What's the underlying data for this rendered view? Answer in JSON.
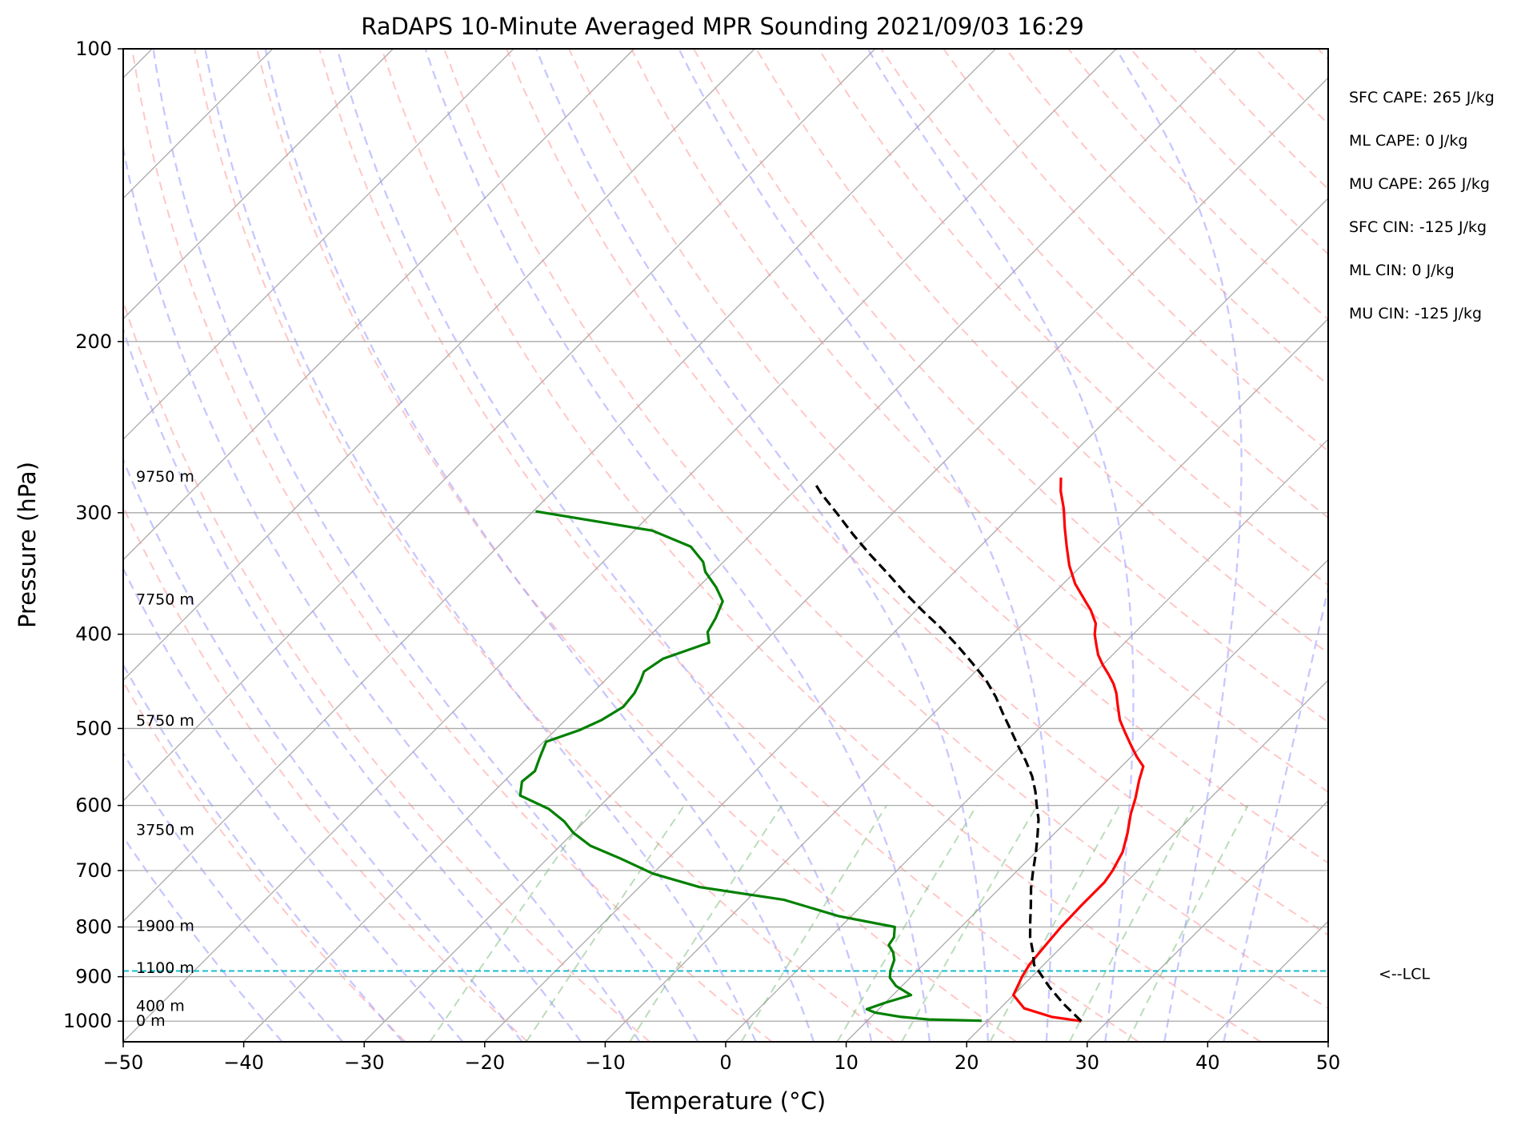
{
  "chart_data": {
    "type": "line",
    "title": "RaDAPS 10-Minute Averaged MPR Sounding 2021/09/03 16:29",
    "xlabel": "Temperature (°C)",
    "ylabel": "Pressure (hPa)",
    "xlim": [
      -50,
      50
    ],
    "ylim": [
      1050,
      100
    ],
    "y_scale": "log",
    "x_ticks": [
      -50,
      -40,
      -30,
      -20,
      -10,
      0,
      10,
      20,
      30,
      40,
      50
    ],
    "x_tick_labels": [
      "−50",
      "−40",
      "−30",
      "−20",
      "−10",
      "0",
      "10",
      "20",
      "30",
      "40",
      "50"
    ],
    "y_ticks": [
      100,
      200,
      300,
      400,
      500,
      600,
      700,
      800,
      900,
      1000
    ],
    "y_tick_labels": [
      "100",
      "200",
      "300",
      "400",
      "500",
      "600",
      "700",
      "800",
      "900",
      "1000"
    ],
    "skew": "skew-T (isotherms slanted 45°)",
    "grid": true,
    "background_lines": [
      "isotherms",
      "dry adiabats",
      "moist adiabats",
      "mixing ratio lines"
    ],
    "colors": {
      "temperature": "#ff0000",
      "dewpoint": "#008000",
      "parcel": "#000000",
      "lcl_line": "#17becf",
      "dry_adiabat": "#ff9999",
      "moist_adiabat": "#9999ff",
      "mixing_ratio": "#66b266",
      "isotherm": "#a9a9a9"
    },
    "series": [
      {
        "role": "temperature",
        "points": [
          [
            27.8,
            1000
          ],
          [
            25,
            990
          ],
          [
            22,
            970
          ],
          [
            20,
            940
          ],
          [
            19.2,
            900
          ],
          [
            18.8,
            875
          ],
          [
            18.7,
            860
          ],
          [
            18.5,
            830
          ],
          [
            18.3,
            800
          ],
          [
            18.2,
            760
          ],
          [
            18.2,
            720
          ],
          [
            17.9,
            700
          ],
          [
            17.2,
            670
          ],
          [
            16,
            640
          ],
          [
            14.7,
            612
          ],
          [
            13.8,
            590
          ],
          [
            12.6,
            565
          ],
          [
            11.8,
            547
          ],
          [
            10.5,
            535
          ],
          [
            9,
            520
          ],
          [
            7.5,
            505
          ],
          [
            6,
            490
          ],
          [
            4.5,
            472
          ],
          [
            3.5,
            460
          ],
          [
            2.5,
            450
          ],
          [
            1.3,
            440
          ],
          [
            0,
            430
          ],
          [
            -1.2,
            420
          ],
          [
            -2.2,
            410
          ],
          [
            -3.2,
            400
          ],
          [
            -4,
            390
          ],
          [
            -5.5,
            378
          ],
          [
            -7,
            368
          ],
          [
            -9,
            355
          ],
          [
            -11,
            340
          ],
          [
            -12.8,
            325
          ],
          [
            -14.5,
            311
          ],
          [
            -16.2,
            297
          ],
          [
            -17.9,
            285
          ],
          [
            -19,
            276
          ]
        ]
      },
      {
        "role": "dewpoint",
        "points": [
          [
            19.5,
            999
          ],
          [
            15,
            996
          ],
          [
            12.5,
            990
          ],
          [
            10,
            980
          ],
          [
            9,
            972
          ],
          [
            10,
            957
          ],
          [
            11.5,
            940
          ],
          [
            9.5,
            920
          ],
          [
            8.3,
            902
          ],
          [
            7.8,
            888
          ],
          [
            7.2,
            865
          ],
          [
            6.5,
            850
          ],
          [
            5.5,
            835
          ],
          [
            5.3,
            820
          ],
          [
            4.5,
            800
          ],
          [
            -1,
            780
          ],
          [
            -7,
            750
          ],
          [
            -15,
            728
          ],
          [
            -20,
            705
          ],
          [
            -24,
            680
          ],
          [
            -27.5,
            660
          ],
          [
            -30,
            640
          ],
          [
            -31.7,
            623
          ],
          [
            -34,
            605
          ],
          [
            -37.5,
            586
          ],
          [
            -38.5,
            567
          ],
          [
            -38.3,
            553
          ],
          [
            -39,
            536
          ],
          [
            -39.8,
            516
          ],
          [
            -38,
            502
          ],
          [
            -37,
            490
          ],
          [
            -36.3,
            475
          ],
          [
            -36.5,
            460
          ],
          [
            -37,
            447
          ],
          [
            -37.5,
            437
          ],
          [
            -37,
            424
          ],
          [
            -34.5,
            408
          ],
          [
            -35.5,
            398
          ],
          [
            -36,
            385
          ],
          [
            -36.8,
            370
          ],
          [
            -38.5,
            358
          ],
          [
            -40.7,
            345
          ],
          [
            -41.7,
            337
          ],
          [
            -44,
            325
          ],
          [
            -48.5,
            313
          ],
          [
            -59.8,
            299
          ]
        ]
      },
      {
        "role": "parcel",
        "points": [
          [
            27.8,
            1000
          ],
          [
            24.9,
            960
          ],
          [
            22.3,
            922
          ],
          [
            20.1,
            888
          ],
          [
            19.2,
            875
          ],
          [
            18.1,
            850
          ],
          [
            16.6,
            820
          ],
          [
            15.3,
            790
          ],
          [
            14,
            760
          ],
          [
            12.6,
            730
          ],
          [
            11.3,
            700
          ],
          [
            10.1,
            672
          ],
          [
            8.8,
            645
          ],
          [
            7.5,
            620
          ],
          [
            6.2,
            600
          ],
          [
            4.9,
            580
          ],
          [
            3.4,
            560
          ],
          [
            1.6,
            540
          ],
          [
            -0.4,
            520
          ],
          [
            -2.4,
            500
          ],
          [
            -4.3,
            482
          ],
          [
            -6.2,
            464
          ],
          [
            -8.4,
            446
          ],
          [
            -11,
            428
          ],
          [
            -13.8,
            410
          ],
          [
            -16.5,
            394
          ],
          [
            -19.5,
            378
          ],
          [
            -22.5,
            362
          ],
          [
            -25.5,
            346
          ],
          [
            -28.5,
            331
          ],
          [
            -31.5,
            316
          ],
          [
            -34.5,
            301
          ],
          [
            -37.5,
            287
          ],
          [
            -39.1,
            279
          ]
        ]
      }
    ],
    "lcl_pressure_hpa": 888,
    "lcl_label": "<--LCL",
    "height_labels": [
      {
        "text": "9750 m",
        "p": 275
      },
      {
        "text": "7750 m",
        "p": 368
      },
      {
        "text": "5750 m",
        "p": 490
      },
      {
        "text": "3750 m",
        "p": 635
      },
      {
        "text": "1900 m",
        "p": 797
      },
      {
        "text": "1100 m",
        "p": 880
      },
      {
        "text": "400 m",
        "p": 963
      },
      {
        "text": "0 m",
        "p": 998
      }
    ],
    "annotations": [
      "SFC CAPE: 265 J/kg",
      "ML CAPE: 0 J/kg",
      "MU CAPE: 265 J/kg",
      "SFC CIN: -125 J/kg",
      "ML CIN: 0 J/kg",
      "MU CIN: -125 J/kg"
    ]
  }
}
